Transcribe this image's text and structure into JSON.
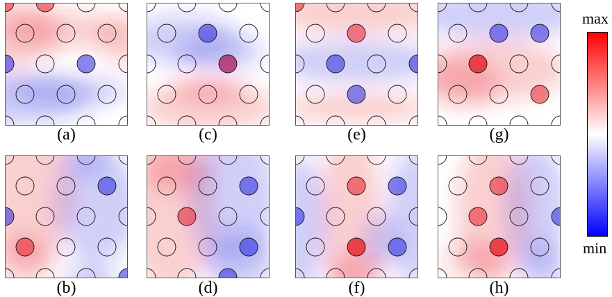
{
  "panels": [
    {
      "id": "a",
      "label": "(a)",
      "fields": [
        [
          "r",
          0.0,
          0.25,
          0.45,
          0.28
        ],
        [
          "b",
          0.0,
          0.78,
          0.7,
          0.22
        ],
        [
          "b",
          0.5,
          0.72,
          0.5,
          0.12
        ],
        [
          "r",
          0.45,
          0.22,
          0.5,
          0.15
        ],
        [
          "r",
          1.0,
          0.3,
          0.25,
          0.2
        ]
      ],
      "strong": [
        [
          "b",
          3,
          4
        ],
        [
          "r",
          2,
          1
        ],
        [
          "r",
          0,
          1
        ],
        [
          "b",
          0,
          5
        ]
      ]
    },
    {
      "id": "b",
      "label": "(b)",
      "fields": [
        [
          "r",
          0.2,
          0.3,
          0.35,
          0.6
        ],
        [
          "r",
          0.15,
          0.85,
          0.25,
          0.2
        ],
        [
          "b",
          0.75,
          0.4,
          0.35,
          0.45
        ],
        [
          "b",
          0.7,
          1.0,
          0.2,
          0.15
        ],
        [
          "b",
          0.65,
          0.0,
          0.2,
          0.15
        ]
      ],
      "strong": [
        [
          "b",
          5,
          2
        ],
        [
          "b",
          5,
          9
        ],
        [
          "r",
          1,
          8
        ],
        [
          "b",
          0,
          3
        ]
      ]
    },
    {
      "id": "c",
      "label": "(c)",
      "fields": [
        [
          "b",
          0.3,
          0.3,
          0.45,
          0.2
        ],
        [
          "b",
          0.6,
          0.4,
          0.35,
          0.15
        ],
        [
          "r",
          0.5,
          0.85,
          0.55,
          0.2
        ],
        [
          "r",
          0.5,
          0.7,
          0.3,
          0.1
        ]
      ],
      "strong": [
        [
          "b",
          3,
          2
        ],
        [
          "b",
          4,
          3
        ],
        [
          "r",
          4,
          6
        ]
      ]
    },
    {
      "id": "d",
      "label": "(d)",
      "fields": [
        [
          "r",
          0.2,
          0.5,
          0.35,
          0.6
        ],
        [
          "r",
          0.25,
          0.1,
          0.3,
          0.2
        ],
        [
          "b",
          0.7,
          0.35,
          0.35,
          0.55
        ],
        [
          "b",
          0.75,
          0.85,
          0.3,
          0.25
        ]
      ],
      "strong": [
        [
          "r",
          1,
          4
        ],
        [
          "b",
          5,
          7
        ],
        [
          "b",
          4,
          8
        ],
        [
          "b",
          5,
          2
        ]
      ]
    },
    {
      "id": "e",
      "label": "(e)",
      "fields": [
        [
          "r",
          0.5,
          0.08,
          0.7,
          0.18
        ],
        [
          "b",
          0.5,
          0.48,
          0.7,
          0.18
        ],
        [
          "r",
          0.5,
          0.85,
          0.6,
          0.12
        ]
      ],
      "strong": [
        [
          "b",
          1,
          4
        ],
        [
          "b",
          5,
          4
        ],
        [
          "b",
          3,
          6
        ],
        [
          "r",
          3,
          1
        ],
        [
          "r",
          0,
          1
        ]
      ]
    },
    {
      "id": "f",
      "label": "(f)",
      "fields": [
        [
          "r",
          0.45,
          0.45,
          0.25,
          0.7
        ],
        [
          "r",
          0.5,
          0.95,
          0.25,
          0.15
        ],
        [
          "b",
          0.05,
          0.55,
          0.2,
          0.55
        ],
        [
          "b",
          0.95,
          0.5,
          0.2,
          0.55
        ],
        [
          "b",
          0.7,
          0.7,
          0.15,
          0.2
        ]
      ],
      "strong": [
        [
          "r",
          3,
          2
        ],
        [
          "r",
          3,
          6
        ],
        [
          "r",
          3,
          8
        ],
        [
          "b",
          5,
          3
        ],
        [
          "b",
          4,
          7
        ],
        [
          "b",
          0,
          4
        ]
      ]
    },
    {
      "id": "g",
      "label": "(g)",
      "fields": [
        [
          "b",
          0.5,
          0.1,
          0.7,
          0.2
        ],
        [
          "r",
          0.45,
          0.55,
          0.6,
          0.25
        ],
        [
          "r",
          0.2,
          0.65,
          0.3,
          0.2
        ]
      ],
      "strong": [
        [
          "b",
          4,
          2
        ],
        [
          "r",
          2,
          6
        ],
        [
          "r",
          2,
          5
        ],
        [
          "r",
          5,
          6
        ],
        [
          "b",
          3,
          1
        ]
      ]
    },
    {
      "id": "h",
      "label": "(h)",
      "fields": [
        [
          "r",
          0.45,
          0.45,
          0.3,
          0.6
        ],
        [
          "r",
          0.3,
          0.85,
          0.25,
          0.15
        ],
        [
          "b",
          0.8,
          0.4,
          0.25,
          0.5
        ],
        [
          "b",
          0.85,
          0.9,
          0.2,
          0.2
        ]
      ],
      "strong": [
        [
          "r",
          3,
          2
        ],
        [
          "r",
          2,
          5
        ],
        [
          "r",
          3,
          8
        ],
        [
          "b",
          5,
          4
        ],
        [
          "r",
          2,
          7
        ]
      ]
    }
  ],
  "colorbar": {
    "max_label": "max",
    "min_label": "min",
    "colors": [
      "#ff0000",
      "#ffffff",
      "#0000ff"
    ]
  },
  "colors": {
    "red": "#e8202a",
    "blue": "#2a2ae0",
    "circle_stroke": "#111111",
    "frame": "#555555"
  }
}
